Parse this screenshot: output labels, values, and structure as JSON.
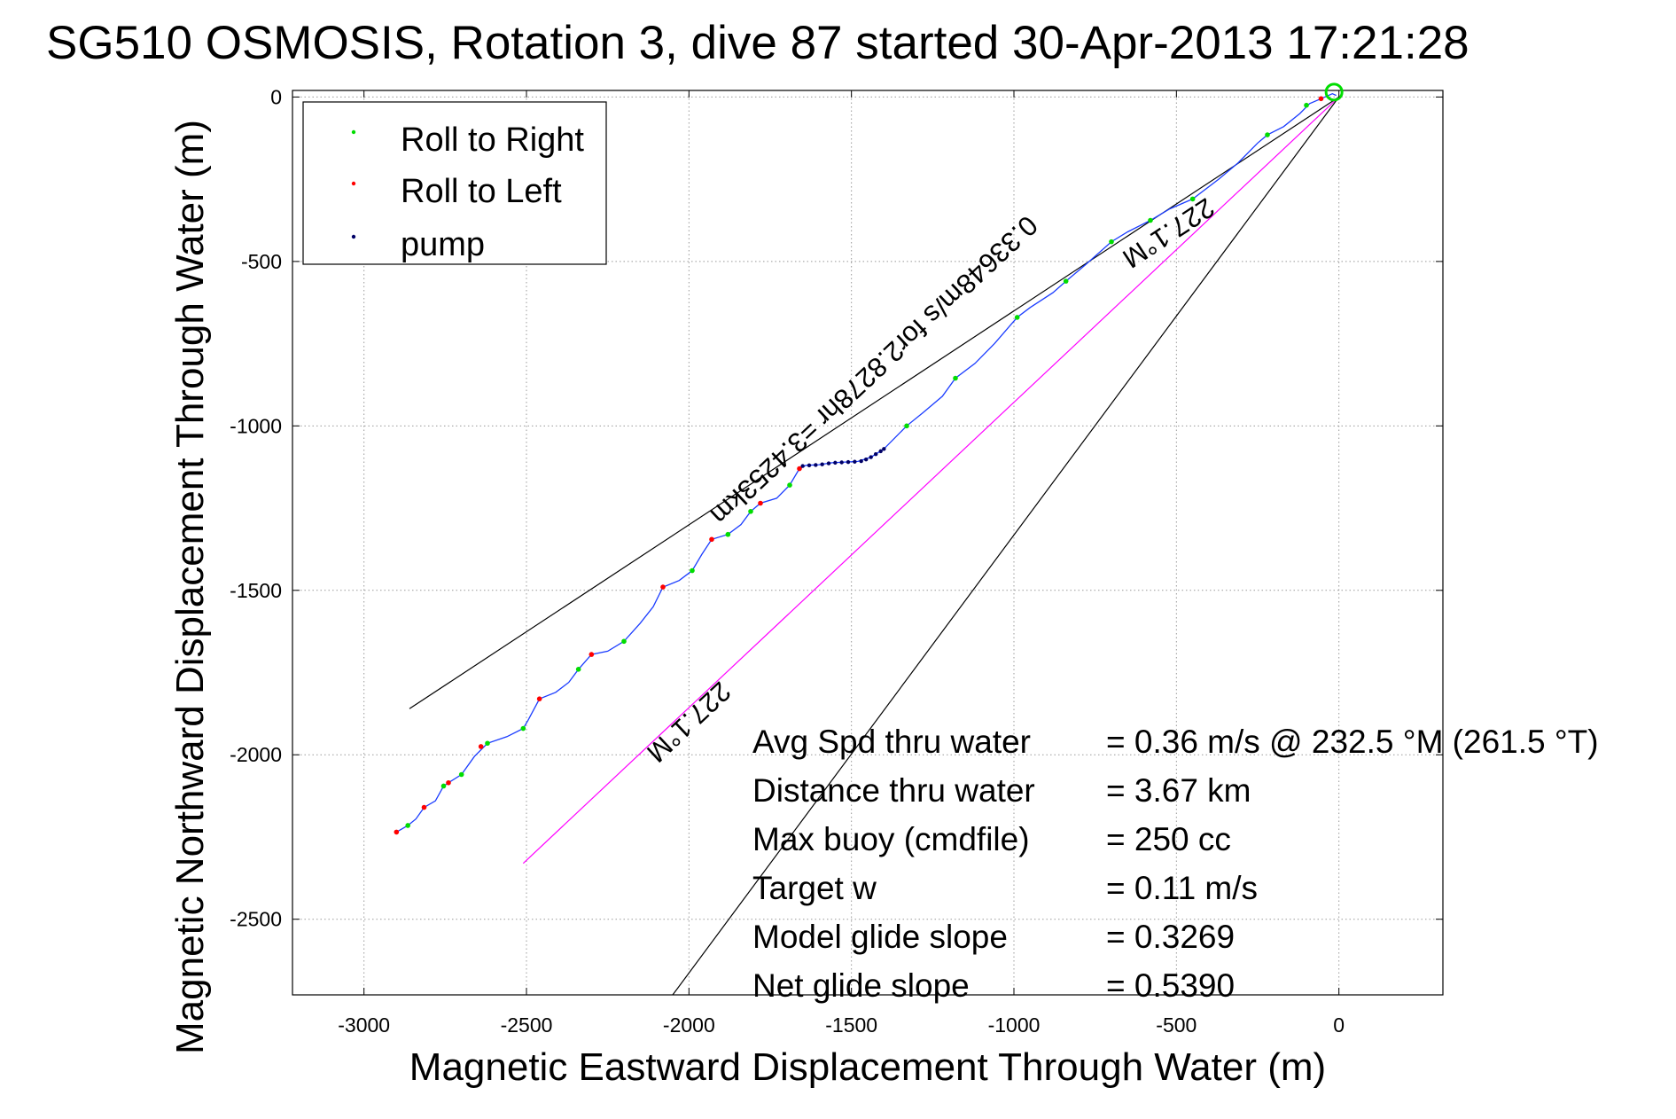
{
  "chart_data": {
    "type": "scatter",
    "title": "SG510 OSMOSIS, Rotation 3, dive 87 started 30-Apr-2013 17:21:28",
    "xlabel": "Magnetic Eastward Displacement Through Water (m)",
    "ylabel": "Magnetic Northward Displacement Through Water (m)",
    "xlim": [
      -3220,
      320
    ],
    "ylim": [
      -2730,
      20
    ],
    "xticks": [
      -3000,
      -2500,
      -2000,
      -1500,
      -1000,
      -500,
      0
    ],
    "yticks": [
      0,
      -500,
      -1000,
      -1500,
      -2000,
      -2500
    ],
    "xtick_labels": [
      "-3000",
      "-2500",
      "-2000",
      "-1500",
      "-1000",
      "-500",
      "0"
    ],
    "ytick_labels": [
      "0",
      "-500",
      "-1000",
      "-1500",
      "-2000",
      "-2500"
    ],
    "grid": true,
    "legend_position": "top-left",
    "legend": [
      {
        "label": "Roll to Right",
        "color": "#00dd00"
      },
      {
        "label": "Roll to Left",
        "color": "#ff0000"
      },
      {
        "label": "pump",
        "color": "#000066"
      }
    ],
    "track_color": "#1a3cff",
    "track": [
      [
        -2900,
        -2235
      ],
      [
        -2865,
        -2215
      ],
      [
        -2840,
        -2195
      ],
      [
        -2815,
        -2160
      ],
      [
        -2780,
        -2140
      ],
      [
        -2755,
        -2095
      ],
      [
        -2740,
        -2085
      ],
      [
        -2700,
        -2060
      ],
      [
        -2660,
        -2005
      ],
      [
        -2620,
        -1965
      ],
      [
        -2560,
        -1945
      ],
      [
        -2510,
        -1920
      ],
      [
        -2495,
        -1895
      ],
      [
        -2460,
        -1830
      ],
      [
        -2410,
        -1810
      ],
      [
        -2370,
        -1780
      ],
      [
        -2340,
        -1740
      ],
      [
        -2300,
        -1695
      ],
      [
        -2250,
        -1685
      ],
      [
        -2200,
        -1655
      ],
      [
        -2150,
        -1600
      ],
      [
        -2110,
        -1550
      ],
      [
        -2080,
        -1490
      ],
      [
        -2030,
        -1470
      ],
      [
        -1990,
        -1440
      ],
      [
        -1960,
        -1390
      ],
      [
        -1930,
        -1345
      ],
      [
        -1880,
        -1330
      ],
      [
        -1840,
        -1300
      ],
      [
        -1810,
        -1260
      ],
      [
        -1780,
        -1235
      ],
      [
        -1730,
        -1220
      ],
      [
        -1690,
        -1180
      ],
      [
        -1660,
        -1130
      ],
      [
        -1640,
        -1120
      ],
      [
        -1600,
        -1118
      ],
      [
        -1560,
        -1112
      ],
      [
        -1520,
        -1110
      ],
      [
        -1480,
        -1108
      ],
      [
        -1440,
        -1095
      ],
      [
        -1400,
        -1070
      ],
      [
        -1370,
        -1040
      ],
      [
        -1330,
        -1000
      ],
      [
        -1280,
        -960
      ],
      [
        -1220,
        -910
      ],
      [
        -1180,
        -855
      ],
      [
        -1120,
        -810
      ],
      [
        -1060,
        -750
      ],
      [
        -990,
        -670
      ],
      [
        -950,
        -640
      ],
      [
        -880,
        -595
      ],
      [
        -840,
        -560
      ],
      [
        -780,
        -510
      ],
      [
        -700,
        -440
      ],
      [
        -650,
        -410
      ],
      [
        -580,
        -375
      ],
      [
        -520,
        -340
      ],
      [
        -450,
        -310
      ],
      [
        -370,
        -250
      ],
      [
        -310,
        -200
      ],
      [
        -250,
        -140
      ],
      [
        -220,
        -115
      ],
      [
        -170,
        -90
      ],
      [
        -120,
        -50
      ],
      [
        -90,
        -20
      ],
      [
        -55,
        -5
      ],
      [
        -20,
        10
      ],
      [
        -8,
        5
      ]
    ],
    "roll_right_points": [
      [
        -2865,
        -2215
      ],
      [
        -2755,
        -2095
      ],
      [
        -2700,
        -2060
      ],
      [
        -2620,
        -1965
      ],
      [
        -2510,
        -1920
      ],
      [
        -2340,
        -1740
      ],
      [
        -2200,
        -1655
      ],
      [
        -1990,
        -1440
      ],
      [
        -1880,
        -1330
      ],
      [
        -1810,
        -1260
      ],
      [
        -1690,
        -1180
      ],
      [
        -1330,
        -1000
      ],
      [
        -1180,
        -855
      ],
      [
        -990,
        -670
      ],
      [
        -840,
        -560
      ],
      [
        -700,
        -440
      ],
      [
        -580,
        -375
      ],
      [
        -450,
        -310
      ],
      [
        -220,
        -115
      ],
      [
        -100,
        -25
      ]
    ],
    "roll_left_points": [
      [
        -2900,
        -2235
      ],
      [
        -2815,
        -2160
      ],
      [
        -2740,
        -2085
      ],
      [
        -2640,
        -1975
      ],
      [
        -2460,
        -1830
      ],
      [
        -2300,
        -1695
      ],
      [
        -2080,
        -1490
      ],
      [
        -1930,
        -1345
      ],
      [
        -1780,
        -1235
      ],
      [
        -1660,
        -1130
      ],
      [
        -55,
        -5
      ]
    ],
    "pump_points": [
      [
        -1650,
        -1122
      ],
      [
        -1630,
        -1120
      ],
      [
        -1610,
        -1119
      ],
      [
        -1590,
        -1117
      ],
      [
        -1570,
        -1114
      ],
      [
        -1550,
        -1112
      ],
      [
        -1530,
        -1111
      ],
      [
        -1510,
        -1110
      ],
      [
        -1490,
        -1109
      ],
      [
        -1470,
        -1107
      ],
      [
        -1455,
        -1102
      ],
      [
        -1440,
        -1095
      ],
      [
        -1425,
        -1086
      ],
      [
        -1410,
        -1077
      ],
      [
        -1400,
        -1070
      ]
    ],
    "surface_marker": [
      -15,
      15
    ],
    "reference_lines": [
      {
        "color": "#000000",
        "from": [
          0,
          0
        ],
        "to": [
          -2860,
          -1860
        ]
      },
      {
        "color": "#000000",
        "from": [
          0,
          0
        ],
        "to": [
          -2050,
          -2730
        ]
      },
      {
        "color": "#ff00ff",
        "from": [
          0,
          0
        ],
        "to": [
          -2510,
          -2330
        ]
      }
    ],
    "line_labels": [
      {
        "text": "227.1°M",
        "x": -540,
        "y": -390
      },
      {
        "text": "0.33648m/s for2.8278hr =3.4253km",
        "x": -1450,
        "y": -810
      },
      {
        "text": "227.1°M",
        "x": -2020,
        "y": -1880
      }
    ],
    "stats": [
      {
        "label": "Avg Spd thru water",
        "value": "=  0.36 m/s @ 232.5 °M (261.5 °T)"
      },
      {
        "label": "Distance thru water",
        "value": "=  3.67 km"
      },
      {
        "label": "Max buoy (cmdfile)",
        "value": "= 250 cc"
      },
      {
        "label": "Target w",
        "value": "= 0.11 m/s"
      },
      {
        "label": "Model glide slope",
        "value": "= 0.3269"
      },
      {
        "label": "Net glide slope",
        "value": "= 0.5390"
      }
    ]
  }
}
